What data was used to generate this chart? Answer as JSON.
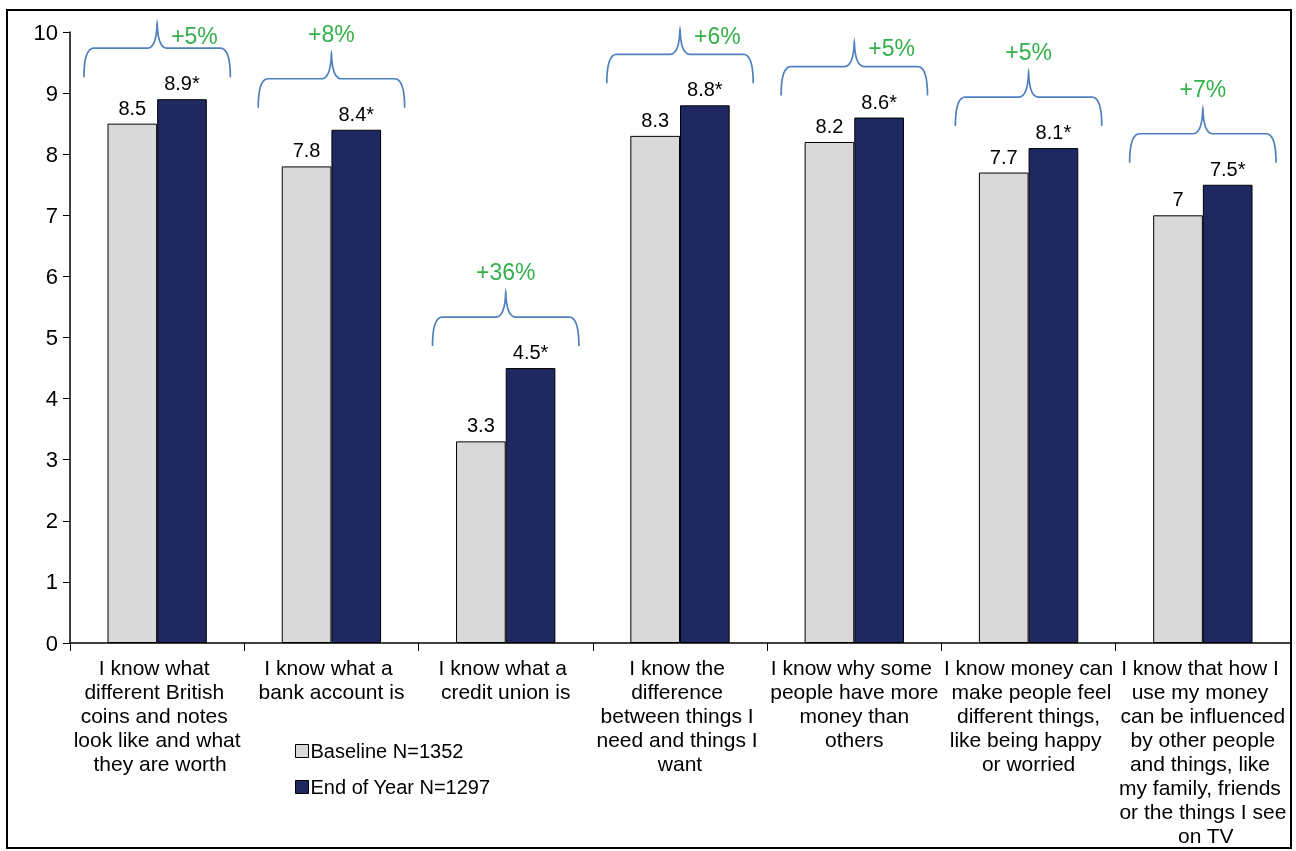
{
  "chart_data": {
    "type": "bar",
    "categories": [
      "I know what different British coins and notes look like and what they are worth",
      "I know what a bank account is",
      "I know what a credit union is",
      "I know the difference between things I need and things I want",
      "I know why some people have more money than others",
      "I know money can make people feel different things, like being happy or worried",
      "I know that how I use my money can be influenced by other people and things, like my family, friends or the things I see on TV"
    ],
    "series": [
      {
        "name": "Baseline N=1352",
        "color": "#d9d9d9",
        "values": [
          8.5,
          7.8,
          3.3,
          8.3,
          8.2,
          7.7,
          7
        ],
        "value_labels": [
          "8.5",
          "7.8",
          "3.3",
          "8.3",
          "8.2",
          "7.7",
          "7"
        ]
      },
      {
        "name": "End of Year N=1297",
        "color": "#1f2860",
        "values": [
          8.9,
          8.4,
          4.5,
          8.8,
          8.6,
          8.1,
          7.5
        ],
        "value_labels": [
          "8.9*",
          "8.4*",
          "4.5*",
          "8.8*",
          "8.6*",
          "8.1*",
          "7.5*"
        ]
      }
    ],
    "ylim": [
      0,
      10
    ],
    "yticks": [
      0,
      1,
      2,
      3,
      4,
      5,
      6,
      7,
      8,
      9,
      10
    ],
    "legend": "bottom",
    "annotations": [
      "+5%",
      "+8%",
      "+36%",
      "+6%",
      "+5%",
      "+5%",
      "+7%"
    ]
  }
}
